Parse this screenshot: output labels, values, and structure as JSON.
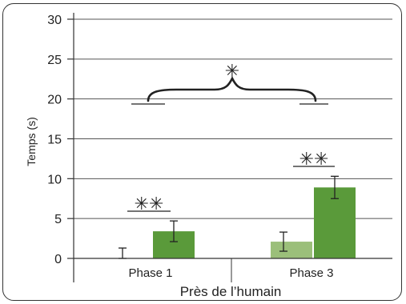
{
  "chart_data": {
    "type": "bar",
    "categories": [
      "Phase 1",
      "Phase 3"
    ],
    "series": [
      {
        "color": "#9bbf7a",
        "values": [
          0.0,
          2.1
        ],
        "errors": [
          1.3,
          1.2
        ]
      },
      {
        "color": "#5a9a3a",
        "values": [
          3.4,
          8.9
        ],
        "errors": [
          1.3,
          1.4
        ]
      }
    ],
    "ylabel": "Temps (s)",
    "xlabel": "Près de l’humain",
    "ylim": [
      0,
      30
    ],
    "yticks": [
      "0",
      "5",
      "10",
      "15",
      "20",
      "25",
      "30"
    ],
    "grid": true,
    "annotations": {
      "phase1_significance": "✳✳",
      "phase3_significance": "✳✳",
      "between_phases": "✳"
    }
  }
}
